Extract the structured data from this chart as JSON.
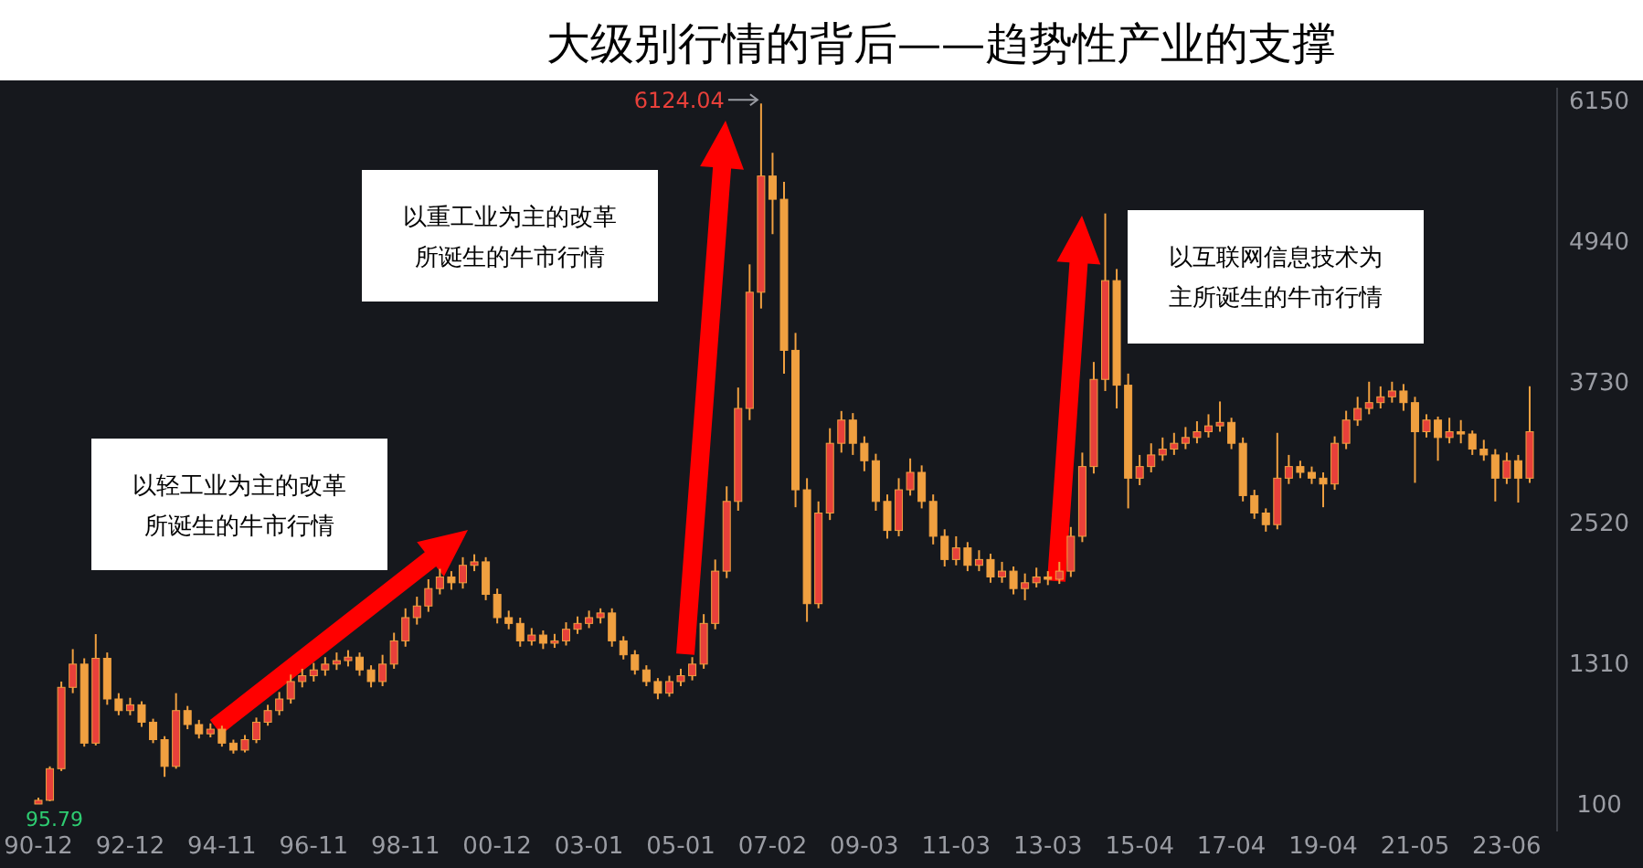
{
  "chart_data": {
    "type": "candlestick",
    "title": "大级别行情的背后——趋势性产业的支撑",
    "categories": [
      "90-12",
      null,
      null,
      null,
      null,
      null,
      null,
      null,
      "92-12",
      null,
      null,
      null,
      null,
      null,
      null,
      null,
      "94-11",
      null,
      null,
      null,
      null,
      null,
      null,
      null,
      "96-11",
      null,
      null,
      null,
      null,
      null,
      null,
      null,
      "98-11",
      null,
      null,
      null,
      null,
      null,
      null,
      null,
      "00-12",
      null,
      null,
      null,
      null,
      null,
      null,
      null,
      "03-01",
      null,
      null,
      null,
      null,
      null,
      null,
      null,
      "05-01",
      null,
      null,
      null,
      null,
      null,
      null,
      null,
      "07-02",
      null,
      null,
      null,
      null,
      null,
      null,
      null,
      "09-03",
      null,
      null,
      null,
      null,
      null,
      null,
      null,
      "11-03",
      null,
      null,
      null,
      null,
      null,
      null,
      null,
      "13-03",
      null,
      null,
      null,
      null,
      null,
      null,
      null,
      "15-04",
      null,
      null,
      null,
      null,
      null,
      null,
      null,
      "17-04",
      null,
      null,
      null,
      null,
      null,
      null,
      null,
      "19-04",
      null,
      null,
      null,
      null,
      null,
      null,
      null,
      "21-05",
      null,
      null,
      null,
      null,
      null,
      null,
      null,
      "23-06",
      null,
      null
    ],
    "ohlc": [
      [
        96,
        150,
        95.79,
        128
      ],
      [
        128,
        420,
        120,
        400
      ],
      [
        400,
        1150,
        380,
        1100
      ],
      [
        1100,
        1429,
        1050,
        1300
      ],
      [
        1300,
        1350,
        590,
        620
      ],
      [
        620,
        1558,
        600,
        1350
      ],
      [
        1350,
        1400,
        950,
        1000
      ],
      [
        1000,
        1050,
        860,
        900
      ],
      [
        900,
        1010,
        860,
        950
      ],
      [
        950,
        980,
        760,
        800
      ],
      [
        800,
        830,
        620,
        650
      ],
      [
        650,
        680,
        330,
        420
      ],
      [
        420,
        1050,
        400,
        900
      ],
      [
        900,
        940,
        740,
        780
      ],
      [
        780,
        820,
        660,
        700
      ],
      [
        700,
        790,
        670,
        740
      ],
      [
        740,
        770,
        590,
        620
      ],
      [
        620,
        650,
        530,
        560
      ],
      [
        560,
        690,
        540,
        650
      ],
      [
        650,
        840,
        620,
        800
      ],
      [
        800,
        950,
        770,
        900
      ],
      [
        900,
        1060,
        860,
        1000
      ],
      [
        1000,
        1210,
        960,
        1150
      ],
      [
        1150,
        1260,
        1100,
        1200
      ],
      [
        1200,
        1310,
        1150,
        1250
      ],
      [
        1250,
        1360,
        1200,
        1300
      ],
      [
        1300,
        1400,
        1250,
        1330
      ],
      [
        1330,
        1420,
        1280,
        1360
      ],
      [
        1360,
        1400,
        1200,
        1250
      ],
      [
        1250,
        1290,
        1100,
        1150
      ],
      [
        1150,
        1380,
        1110,
        1300
      ],
      [
        1300,
        1570,
        1260,
        1500
      ],
      [
        1500,
        1780,
        1450,
        1700
      ],
      [
        1700,
        1880,
        1640,
        1800
      ],
      [
        1800,
        2030,
        1750,
        1950
      ],
      [
        1950,
        2120,
        1900,
        2050
      ],
      [
        2050,
        2100,
        1940,
        2000
      ],
      [
        2000,
        2220,
        1950,
        2150
      ],
      [
        2150,
        2245,
        2100,
        2180
      ],
      [
        2180,
        2220,
        1850,
        1900
      ],
      [
        1900,
        1950,
        1650,
        1700
      ],
      [
        1700,
        1760,
        1600,
        1650
      ],
      [
        1650,
        1700,
        1450,
        1500
      ],
      [
        1500,
        1610,
        1460,
        1550
      ],
      [
        1550,
        1590,
        1430,
        1480
      ],
      [
        1480,
        1560,
        1440,
        1500
      ],
      [
        1500,
        1660,
        1460,
        1600
      ],
      [
        1600,
        1710,
        1560,
        1650
      ],
      [
        1650,
        1760,
        1610,
        1700
      ],
      [
        1700,
        1780,
        1650,
        1740
      ],
      [
        1740,
        1780,
        1450,
        1500
      ],
      [
        1500,
        1540,
        1340,
        1380
      ],
      [
        1380,
        1420,
        1210,
        1250
      ],
      [
        1250,
        1290,
        1110,
        1150
      ],
      [
        1150,
        1180,
        998,
        1050
      ],
      [
        1050,
        1200,
        1020,
        1150
      ],
      [
        1150,
        1260,
        1110,
        1200
      ],
      [
        1200,
        1360,
        1160,
        1300
      ],
      [
        1300,
        1730,
        1260,
        1650
      ],
      [
        1650,
        2200,
        1600,
        2100
      ],
      [
        2100,
        2830,
        2040,
        2700
      ],
      [
        2700,
        3680,
        2620,
        3500
      ],
      [
        3500,
        4740,
        3400,
        4500
      ],
      [
        4500,
        6124.04,
        4360,
        5500
      ],
      [
        5500,
        5700,
        5000,
        5300
      ],
      [
        5300,
        5450,
        3800,
        4000
      ],
      [
        4000,
        4150,
        2650,
        2800
      ],
      [
        2800,
        2900,
        1664,
        1820
      ],
      [
        1820,
        2700,
        1780,
        2600
      ],
      [
        2600,
        3330,
        2540,
        3200
      ],
      [
        3200,
        3478,
        3120,
        3400
      ],
      [
        3400,
        3460,
        3100,
        3200
      ],
      [
        3200,
        3260,
        2960,
        3050
      ],
      [
        3050,
        3110,
        2620,
        2700
      ],
      [
        2700,
        2760,
        2380,
        2450
      ],
      [
        2450,
        2900,
        2400,
        2800
      ],
      [
        2800,
        3070,
        2750,
        2950
      ],
      [
        2950,
        3010,
        2640,
        2700
      ],
      [
        2700,
        2760,
        2330,
        2400
      ],
      [
        2400,
        2460,
        2140,
        2200
      ],
      [
        2200,
        2400,
        2150,
        2300
      ],
      [
        2300,
        2350,
        2100,
        2150
      ],
      [
        2150,
        2280,
        2100,
        2200
      ],
      [
        2200,
        2250,
        2000,
        2050
      ],
      [
        2050,
        2180,
        2000,
        2100
      ],
      [
        2100,
        2140,
        1900,
        1950
      ],
      [
        1950,
        2080,
        1850,
        2000
      ],
      [
        2000,
        2130,
        1960,
        2050
      ],
      [
        2050,
        2100,
        1980,
        2030
      ],
      [
        2030,
        2180,
        1990,
        2100
      ],
      [
        2100,
        2480,
        2050,
        2400
      ],
      [
        2400,
        3120,
        2350,
        3000
      ],
      [
        3000,
        3900,
        2940,
        3750
      ],
      [
        3750,
        5178,
        3650,
        4600
      ],
      [
        4600,
        4700,
        3500,
        3700
      ],
      [
        3700,
        3800,
        2640,
        2900
      ],
      [
        2900,
        3100,
        2840,
        3000
      ],
      [
        3000,
        3200,
        2950,
        3100
      ],
      [
        3100,
        3250,
        3050,
        3150
      ],
      [
        3150,
        3290,
        3100,
        3200
      ],
      [
        3200,
        3340,
        3150,
        3250
      ],
      [
        3250,
        3390,
        3200,
        3300
      ],
      [
        3300,
        3450,
        3250,
        3350
      ],
      [
        3350,
        3560,
        3300,
        3380
      ],
      [
        3380,
        3420,
        3150,
        3200
      ],
      [
        3200,
        3250,
        2700,
        2750
      ],
      [
        2750,
        2800,
        2550,
        2600
      ],
      [
        2600,
        2640,
        2440,
        2500
      ],
      [
        2500,
        3290,
        2460,
        2900
      ],
      [
        2900,
        3100,
        2850,
        3000
      ],
      [
        3000,
        3050,
        2900,
        2950
      ],
      [
        2950,
        3000,
        2850,
        2900
      ],
      [
        2900,
        2950,
        2650,
        2850
      ],
      [
        2850,
        3260,
        2800,
        3200
      ],
      [
        3200,
        3480,
        3150,
        3400
      ],
      [
        3400,
        3600,
        3350,
        3500
      ],
      [
        3500,
        3730,
        3450,
        3550
      ],
      [
        3550,
        3690,
        3500,
        3600
      ],
      [
        3600,
        3730,
        3550,
        3650
      ],
      [
        3650,
        3710,
        3480,
        3550
      ],
      [
        3550,
        3600,
        2860,
        3300
      ],
      [
        3300,
        3450,
        3250,
        3400
      ],
      [
        3400,
        3430,
        3050,
        3250
      ],
      [
        3250,
        3420,
        3200,
        3300
      ],
      [
        3300,
        3400,
        3200,
        3280
      ],
      [
        3280,
        3310,
        3100,
        3150
      ],
      [
        3150,
        3230,
        3050,
        3100
      ],
      [
        3100,
        3150,
        2700,
        2900
      ],
      [
        2900,
        3120,
        2850,
        3050
      ],
      [
        3050,
        3100,
        2690,
        2900
      ],
      [
        2900,
        3690,
        2860,
        3300
      ]
    ],
    "color": "#f0a040",
    "ylim": [
      -140,
      6260
    ],
    "yticks": [
      100,
      1310,
      2520,
      3730,
      4940,
      6150
    ],
    "annotations": [
      "以轻工业为主的改革所诞生的牛市行情",
      "以重工业为主的改革所诞生的牛市行情",
      "以互联网信息技术为主所诞生的牛市行情",
      "6124.04",
      "95.79"
    ]
  }
}
